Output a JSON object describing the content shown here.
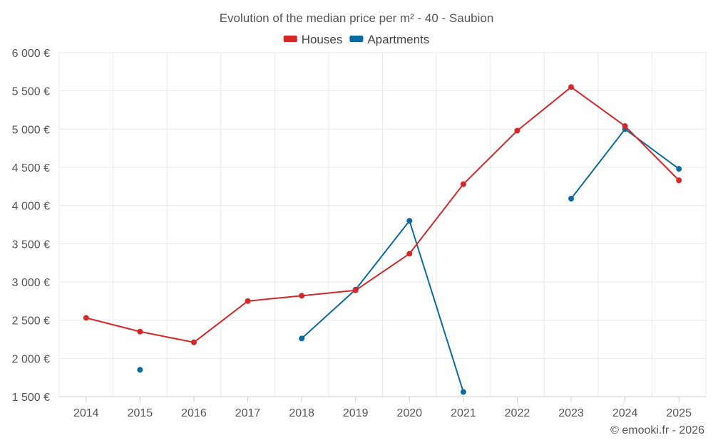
{
  "chart_data": {
    "type": "line",
    "title": "Evolution of the median price per m² - 40 - Saubion",
    "categories": [
      "2014",
      "2015",
      "2016",
      "2017",
      "2018",
      "2019",
      "2020",
      "2021",
      "2022",
      "2023",
      "2024",
      "2025"
    ],
    "ylim": [
      1500,
      6000
    ],
    "yticks": [
      1500,
      2000,
      2500,
      3000,
      3500,
      4000,
      4500,
      5000,
      5500,
      6000
    ],
    "ytick_labels": [
      "1 500 €",
      "2 000 €",
      "2 500 €",
      "3 000 €",
      "3 500 €",
      "4 000 €",
      "4 500 €",
      "5 000 €",
      "5 500 €",
      "6 000 €"
    ],
    "grid": true,
    "legend_position": "top-center",
    "series": [
      {
        "name": "Houses",
        "color": "#d62728",
        "values": [
          2530,
          2350,
          2210,
          2750,
          2820,
          2890,
          3370,
          4280,
          4980,
          5550,
          5040,
          4330
        ]
      },
      {
        "name": "Apartments",
        "color": "#0b6aa2",
        "values": [
          null,
          1850,
          null,
          null,
          2260,
          2900,
          3800,
          1560,
          null,
          4090,
          5000,
          4480
        ]
      }
    ],
    "credit": "© emooki.fr - 2026"
  }
}
